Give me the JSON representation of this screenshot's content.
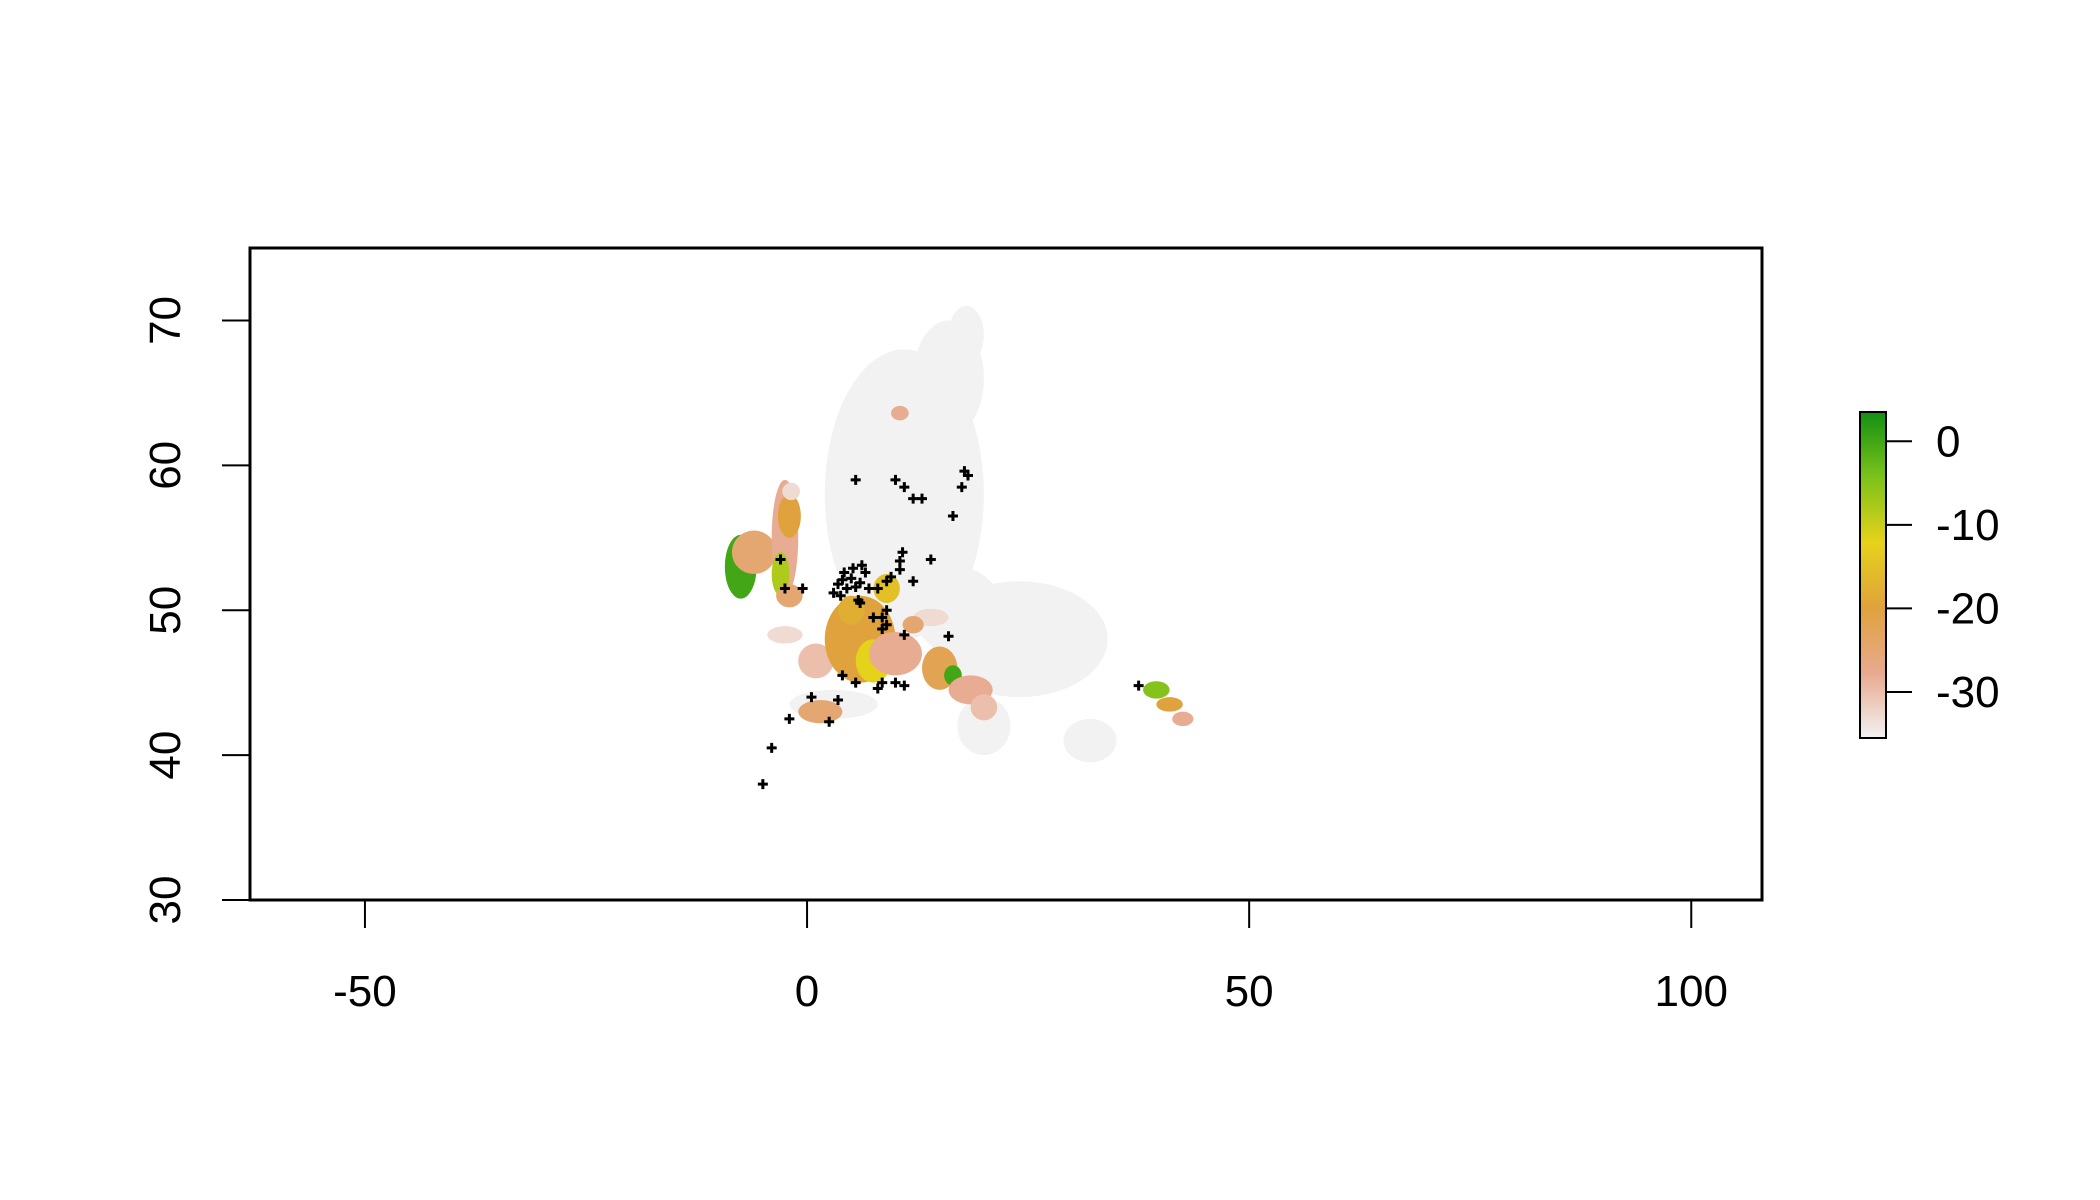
{
  "chart_data": {
    "type": "heatmap",
    "title": "",
    "xlabel": "",
    "ylabel": "",
    "xlim": [
      -63,
      108
    ],
    "ylim": [
      30,
      75
    ],
    "x_ticks": [
      -50,
      0,
      50,
      100
    ],
    "y_ticks": [
      30,
      40,
      50,
      60,
      70
    ],
    "x_tick_labels": [
      "-50",
      "0",
      "50",
      "100"
    ],
    "y_tick_labels": [
      "30",
      "40",
      "50",
      "60",
      "70"
    ],
    "legend": {
      "placement": "right",
      "range": [
        -35.5,
        3.5
      ],
      "ticks": [
        0,
        -10,
        -20,
        -30
      ],
      "tick_labels": [
        "0",
        "-10",
        "-20",
        "-30"
      ],
      "colors": [
        "#f2f2f2",
        "#e8a98f",
        "#e0a23c",
        "#e6d21a",
        "#7cc21a",
        "#129012"
      ]
    },
    "raster_regions": [
      {
        "cx": 11,
        "cy": 58,
        "rx": 9,
        "ry": 10,
        "value": -36
      },
      {
        "cx": 16,
        "cy": 66,
        "rx": 4,
        "ry": 4,
        "value": -36
      },
      {
        "cx": 18,
        "cy": 69,
        "rx": 2,
        "ry": 2,
        "value": -36
      },
      {
        "cx": 24,
        "cy": 48,
        "rx": 10,
        "ry": 4,
        "value": -36
      },
      {
        "cx": 17,
        "cy": 50,
        "rx": 5,
        "ry": 3,
        "value": -36
      },
      {
        "cx": 20,
        "cy": 42,
        "rx": 3,
        "ry": 2,
        "value": -36
      },
      {
        "cx": 32,
        "cy": 41,
        "rx": 3,
        "ry": 1.5,
        "value": -36
      },
      {
        "cx": 3,
        "cy": 43.5,
        "rx": 5,
        "ry": 1,
        "value": -36
      },
      {
        "cx": 7,
        "cy": 52,
        "rx": 3,
        "ry": 3,
        "value": -36
      },
      {
        "cx": -7.5,
        "cy": 53,
        "rx": 1.8,
        "ry": 2.2,
        "value": 0
      },
      {
        "cx": -6,
        "cy": 54,
        "rx": 2.5,
        "ry": 1.5,
        "value": -25
      },
      {
        "cx": -2.5,
        "cy": 55,
        "rx": 1.5,
        "ry": 4,
        "value": -28
      },
      {
        "cx": -2,
        "cy": 56.5,
        "rx": 1.3,
        "ry": 1.5,
        "value": -20
      },
      {
        "cx": -3,
        "cy": 52.5,
        "rx": 1,
        "ry": 1.5,
        "value": -8
      },
      {
        "cx": -2,
        "cy": 51,
        "rx": 1.5,
        "ry": 0.8,
        "value": -25
      },
      {
        "cx": -1.8,
        "cy": 58.2,
        "rx": 1,
        "ry": 0.6,
        "value": -33
      },
      {
        "cx": 10.5,
        "cy": 63.6,
        "rx": 1,
        "ry": 0.5,
        "value": -28
      },
      {
        "cx": -2.5,
        "cy": 48.3,
        "rx": 2,
        "ry": 0.6,
        "value": -33
      },
      {
        "cx": 1,
        "cy": 46.5,
        "rx": 2,
        "ry": 1.2,
        "value": -30
      },
      {
        "cx": 1.5,
        "cy": 43,
        "rx": 2.5,
        "ry": 0.8,
        "value": -25
      },
      {
        "cx": 6,
        "cy": 48,
        "rx": 4,
        "ry": 3,
        "value": -20
      },
      {
        "cx": 7.5,
        "cy": 46.5,
        "rx": 2,
        "ry": 1.5,
        "value": -12
      },
      {
        "cx": 5,
        "cy": 50,
        "rx": 1.5,
        "ry": 1,
        "value": -18
      },
      {
        "cx": 10,
        "cy": 47,
        "rx": 3,
        "ry": 1.5,
        "value": -28
      },
      {
        "cx": 9,
        "cy": 51.5,
        "rx": 1.5,
        "ry": 1,
        "value": -15
      },
      {
        "cx": 15,
        "cy": 46,
        "rx": 2,
        "ry": 1.5,
        "value": -22
      },
      {
        "cx": 16.5,
        "cy": 45.5,
        "rx": 1,
        "ry": 0.7,
        "value": 0
      },
      {
        "cx": 18.5,
        "cy": 44.5,
        "rx": 2.5,
        "ry": 1,
        "value": -28
      },
      {
        "cx": 20,
        "cy": 43.3,
        "rx": 1.5,
        "ry": 0.9,
        "value": -30
      },
      {
        "cx": 14,
        "cy": 49.5,
        "rx": 2,
        "ry": 0.6,
        "value": -33
      },
      {
        "cx": 12,
        "cy": 49,
        "rx": 1.2,
        "ry": 0.6,
        "value": -25
      },
      {
        "cx": 39.5,
        "cy": 44.5,
        "rx": 1.5,
        "ry": 0.6,
        "value": -5
      },
      {
        "cx": 41,
        "cy": 43.5,
        "rx": 1.5,
        "ry": 0.5,
        "value": -20
      },
      {
        "cx": 42.5,
        "cy": 42.5,
        "rx": 1.2,
        "ry": 0.5,
        "value": -28
      }
    ],
    "points": [
      [
        -5,
        38
      ],
      [
        -4,
        40.5
      ],
      [
        -2,
        42.5
      ],
      [
        2.5,
        42.3
      ],
      [
        0.5,
        44
      ],
      [
        3.5,
        43.8
      ],
      [
        4,
        45.5
      ],
      [
        5.5,
        45
      ],
      [
        8.5,
        45
      ],
      [
        10,
        45
      ],
      [
        11,
        44.8
      ],
      [
        8,
        44.6
      ],
      [
        -2.5,
        51.5
      ],
      [
        -0.5,
        51.5
      ],
      [
        -3,
        53.5
      ],
      [
        3,
        51.2
      ],
      [
        3.5,
        51.8
      ],
      [
        4,
        52.1
      ],
      [
        4.5,
        51.5
      ],
      [
        5,
        52.2
      ],
      [
        5.5,
        51.6
      ],
      [
        6,
        51.9
      ],
      [
        4.2,
        52.6
      ],
      [
        5.2,
        52.9
      ],
      [
        6.2,
        53.1
      ],
      [
        3.8,
        51.0
      ],
      [
        5.8,
        50.7
      ],
      [
        6.6,
        52.6
      ],
      [
        7,
        51.5
      ],
      [
        8,
        51.5
      ],
      [
        9,
        52
      ],
      [
        9.5,
        52.3
      ],
      [
        10.5,
        52.8
      ],
      [
        10.5,
        53.4
      ],
      [
        10.8,
        54
      ],
      [
        12,
        52
      ],
      [
        14,
        53.5
      ],
      [
        7.5,
        49.5
      ],
      [
        8.5,
        49.5
      ],
      [
        9,
        50
      ],
      [
        8.5,
        48.7
      ],
      [
        9,
        49
      ],
      [
        11,
        48.3
      ],
      [
        16,
        48.2
      ],
      [
        6,
        50.5
      ],
      [
        5.5,
        59
      ],
      [
        10,
        59
      ],
      [
        11,
        58.5
      ],
      [
        12,
        57.7
      ],
      [
        13,
        57.7
      ],
      [
        16.5,
        56.5
      ],
      [
        17.5,
        58.5
      ],
      [
        17.8,
        59.6
      ],
      [
        18.2,
        59.3
      ],
      [
        37.5,
        44.8
      ]
    ]
  }
}
